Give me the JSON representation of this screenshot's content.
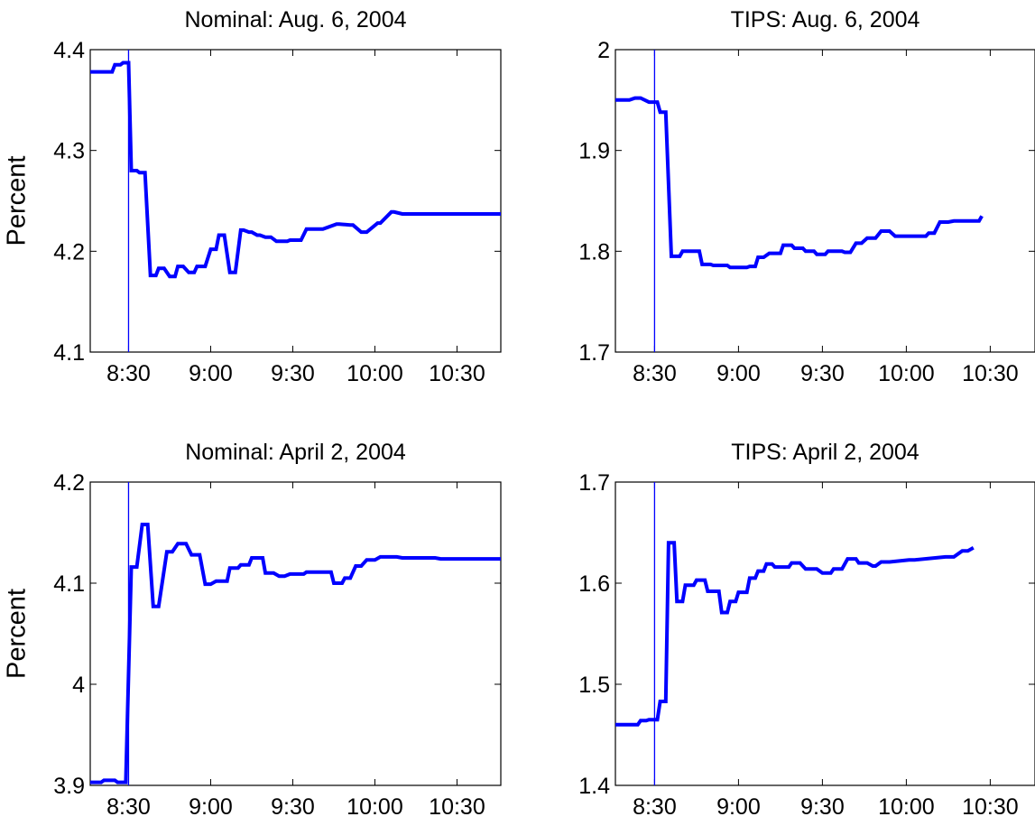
{
  "colors": {
    "series": "#0000ff",
    "axis": "#000000",
    "background": "#ffffff"
  },
  "chart_data": [
    {
      "type": "line",
      "title": "Nominal: Aug. 6, 2004",
      "ylabel": "Percent",
      "xlabel": "",
      "x_tick_labels": [
        "8:30",
        "9:00",
        "9:30",
        "10:00",
        "10:30"
      ],
      "x_ticks": [
        "8:30",
        "9:00",
        "9:30",
        "10:00",
        "10:30"
      ],
      "xlim": [
        "8:16",
        "10:46"
      ],
      "y_tick_labels": [
        "4.1",
        "4.2",
        "4.3",
        "4.4"
      ],
      "y_ticks": [
        4.1,
        4.2,
        4.3,
        4.4
      ],
      "ylim": [
        4.1,
        4.4
      ],
      "grid": false,
      "event_line_x": "8:30",
      "series": [
        {
          "x": [
            "8:16",
            "8:24",
            "8:25",
            "8:27",
            "8:28",
            "8:30",
            "8:31",
            "8:33",
            "8:34",
            "8:36",
            "8:38",
            "8:40",
            "8:41",
            "8:43",
            "8:45",
            "8:47",
            "8:48",
            "8:50",
            "8:52",
            "8:54",
            "8:55",
            "8:58",
            "9:00",
            "9:02",
            "9:03",
            "9:05",
            "9:07",
            "9:09",
            "9:11",
            "9:12",
            "9:14",
            "9:15",
            "9:17",
            "9:18",
            "9:20",
            "9:22",
            "9:24",
            "9:28",
            "9:29",
            "9:33",
            "9:35",
            "9:41",
            "9:46",
            "9:47",
            "9:51",
            "9:52",
            "9:55",
            "9:57",
            "10:01",
            "10:02",
            "10:06",
            "10:07",
            "10:10",
            "10:12",
            "10:20",
            "10:21",
            "10:25",
            "10:27",
            "10:46"
          ],
          "y": [
            4.378,
            4.378,
            4.385,
            4.385,
            4.387,
            4.387,
            4.28,
            4.28,
            4.278,
            4.278,
            4.176,
            4.176,
            4.183,
            4.183,
            4.175,
            4.175,
            4.185,
            4.185,
            4.179,
            4.179,
            4.185,
            4.185,
            4.202,
            4.202,
            4.216,
            4.216,
            4.179,
            4.179,
            4.221,
            4.221,
            4.219,
            4.219,
            4.216,
            4.216,
            4.214,
            4.214,
            4.21,
            4.21,
            4.211,
            4.211,
            4.222,
            4.222,
            4.227,
            4.227,
            4.226,
            4.226,
            4.219,
            4.219,
            4.228,
            4.228,
            4.239,
            4.239,
            4.237,
            4.237,
            4.237,
            4.237,
            4.237,
            4.237,
            4.237
          ]
        }
      ]
    },
    {
      "type": "line",
      "title": "TIPS: Aug. 6, 2004",
      "ylabel": "",
      "xlabel": "",
      "x_tick_labels": [
        "8:30",
        "9:00",
        "9:30",
        "10:00",
        "10:30"
      ],
      "x_ticks": [
        "8:30",
        "9:00",
        "9:30",
        "10:00",
        "10:30"
      ],
      "xlim": [
        "8:16",
        "10:46"
      ],
      "y_tick_labels": [
        "1.7",
        "1.8",
        "1.9",
        "2"
      ],
      "y_ticks": [
        1.7,
        1.8,
        1.9,
        2.0
      ],
      "ylim": [
        1.7,
        2.0
      ],
      "grid": false,
      "event_line_x": "8:30",
      "series": [
        {
          "x": [
            "8:16",
            "8:21",
            "8:23",
            "8:25",
            "8:28",
            "8:31",
            "8:32",
            "8:34",
            "8:36",
            "8:39",
            "8:40",
            "8:46",
            "8:47",
            "8:50",
            "8:51",
            "8:56",
            "8:57",
            "9:03",
            "9:04",
            "9:06",
            "9:07",
            "9:09",
            "9:11",
            "9:15",
            "9:16",
            "9:19",
            "9:20",
            "9:23",
            "9:24",
            "9:27",
            "9:28",
            "9:31",
            "9:32",
            "9:37",
            "9:38",
            "9:40",
            "9:42",
            "9:44",
            "9:46",
            "9:49",
            "9:51",
            "9:54",
            "9:56",
            "10:07",
            "10:08",
            "10:10",
            "10:12",
            "10:15",
            "10:17",
            "10:26",
            "10:27"
          ],
          "y": [
            1.95,
            1.95,
            1.952,
            1.952,
            1.948,
            1.948,
            1.938,
            1.938,
            1.795,
            1.795,
            1.8,
            1.8,
            1.787,
            1.787,
            1.786,
            1.786,
            1.784,
            1.784,
            1.785,
            1.785,
            1.794,
            1.794,
            1.798,
            1.798,
            1.806,
            1.806,
            1.803,
            1.803,
            1.8,
            1.8,
            1.797,
            1.797,
            1.8,
            1.8,
            1.799,
            1.799,
            1.808,
            1.808,
            1.813,
            1.813,
            1.82,
            1.82,
            1.815,
            1.815,
            1.818,
            1.818,
            1.829,
            1.829,
            1.83,
            1.83,
            1.835
          ]
        }
      ]
    },
    {
      "type": "line",
      "title": "Nominal: April 2, 2004",
      "ylabel": "Percent",
      "xlabel": "",
      "x_tick_labels": [
        "8:30",
        "9:00",
        "9:30",
        "10:00",
        "10:30"
      ],
      "x_ticks": [
        "8:30",
        "9:00",
        "9:30",
        "10:00",
        "10:30"
      ],
      "xlim": [
        "8:16",
        "10:46"
      ],
      "y_tick_labels": [
        "3.9",
        "4",
        "4.1",
        "4.2"
      ],
      "y_ticks": [
        3.9,
        4.0,
        4.1,
        4.2
      ],
      "ylim": [
        3.9,
        4.2
      ],
      "grid": false,
      "event_line_x": "8:30",
      "series": [
        {
          "x": [
            "8:16",
            "8:20",
            "8:21",
            "8:25",
            "8:26",
            "8:29",
            "8:31",
            "8:33",
            "8:35",
            "8:37",
            "8:39",
            "8:41",
            "8:44",
            "8:46",
            "8:48",
            "8:51",
            "8:53",
            "8:56",
            "8:58",
            "9:00",
            "9:02",
            "9:06",
            "9:07",
            "9:10",
            "9:11",
            "9:14",
            "9:15",
            "9:19",
            "9:20",
            "9:23",
            "9:25",
            "9:27",
            "9:29",
            "9:34",
            "9:35",
            "9:44",
            "9:45",
            "9:48",
            "9:49",
            "9:51",
            "9:53",
            "9:55",
            "9:57",
            "10:00",
            "10:02",
            "10:08",
            "10:10",
            "10:22",
            "10:24",
            "10:46"
          ],
          "y": [
            3.903,
            3.903,
            3.905,
            3.905,
            3.903,
            3.903,
            4.116,
            4.116,
            4.158,
            4.158,
            4.077,
            4.077,
            4.131,
            4.131,
            4.139,
            4.139,
            4.128,
            4.128,
            4.099,
            4.099,
            4.102,
            4.102,
            4.115,
            4.115,
            4.118,
            4.118,
            4.125,
            4.125,
            4.11,
            4.11,
            4.107,
            4.107,
            4.109,
            4.109,
            4.111,
            4.111,
            4.1,
            4.1,
            4.105,
            4.105,
            4.117,
            4.117,
            4.123,
            4.123,
            4.126,
            4.126,
            4.125,
            4.125,
            4.124,
            4.124
          ]
        }
      ]
    },
    {
      "type": "line",
      "title": "TIPS: April 2, 2004",
      "ylabel": "",
      "xlabel": "",
      "x_tick_labels": [
        "8:30",
        "9:00",
        "9:30",
        "10:00",
        "10:30"
      ],
      "x_ticks": [
        "8:30",
        "9:00",
        "9:30",
        "10:00",
        "10:30"
      ],
      "xlim": [
        "8:16",
        "10:46"
      ],
      "y_tick_labels": [
        "1.4",
        "1.5",
        "1.6",
        "1.7"
      ],
      "y_ticks": [
        1.4,
        1.5,
        1.6,
        1.7
      ],
      "ylim": [
        1.4,
        1.7
      ],
      "grid": false,
      "event_line_x": "8:30",
      "series": [
        {
          "x": [
            "8:16",
            "8:24",
            "8:25",
            "8:27",
            "8:28",
            "8:31",
            "8:32",
            "8:34",
            "8:35",
            "8:37",
            "8:38",
            "8:40",
            "8:41",
            "8:44",
            "8:45",
            "8:48",
            "8:49",
            "8:53",
            "8:54",
            "8:56",
            "8:57",
            "8:59",
            "9:00",
            "9:03",
            "9:04",
            "9:06",
            "9:07",
            "9:09",
            "9:10",
            "9:12",
            "9:13",
            "9:18",
            "9:19",
            "9:22",
            "9:24",
            "9:28",
            "9:30",
            "9:33",
            "9:34",
            "9:37",
            "9:39",
            "9:42",
            "9:43",
            "9:46",
            "9:48",
            "9:49",
            "9:51",
            "9:54",
            "10:01",
            "10:03",
            "10:14",
            "10:17",
            "10:20",
            "10:22",
            "10:24"
          ],
          "y": [
            1.46,
            1.46,
            1.464,
            1.464,
            1.465,
            1.465,
            1.483,
            1.483,
            1.64,
            1.64,
            1.582,
            1.582,
            1.598,
            1.598,
            1.603,
            1.603,
            1.592,
            1.592,
            1.571,
            1.571,
            1.582,
            1.582,
            1.591,
            1.591,
            1.605,
            1.605,
            1.612,
            1.612,
            1.619,
            1.619,
            1.616,
            1.616,
            1.62,
            1.62,
            1.614,
            1.614,
            1.61,
            1.61,
            1.614,
            1.614,
            1.624,
            1.624,
            1.62,
            1.62,
            1.617,
            1.617,
            1.621,
            1.621,
            1.623,
            1.623,
            1.626,
            1.626,
            1.632,
            1.632,
            1.635
          ]
        }
      ]
    }
  ]
}
